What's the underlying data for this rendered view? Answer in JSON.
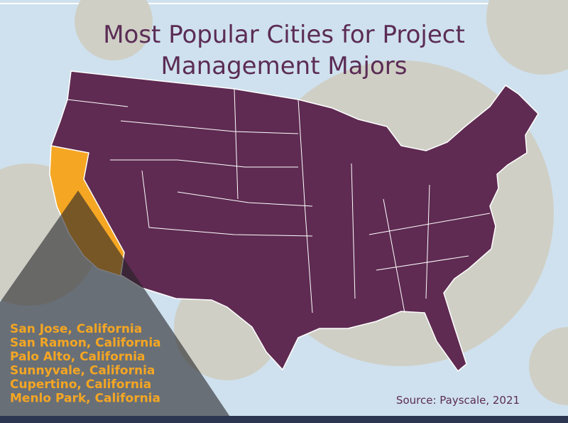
{
  "title": [
    "Most Popular Cities for Project",
    "Management Majors"
  ],
  "cities": [
    "San Jose, California",
    "San Ramon, California",
    "Palo Alto, California",
    "Sunnyvale, California",
    "Cupertino, California",
    "Menlo Park, California"
  ],
  "source": "Source: Payscale, 2021"
}
